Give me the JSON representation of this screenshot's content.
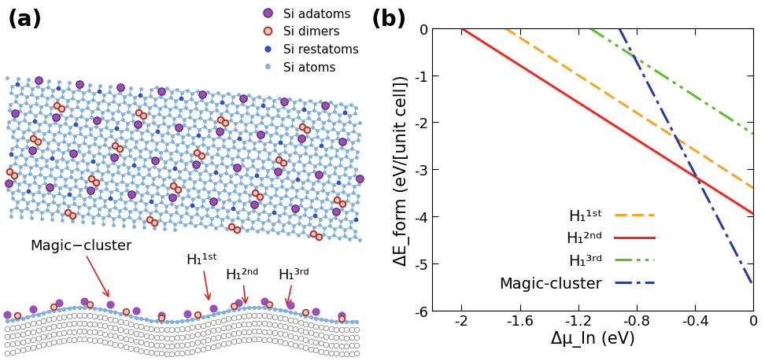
{
  "diagram": {
    "title": "(a)",
    "legend": "upper right",
    "legend_entries": [
      {
        "name": "Si adatoms",
        "color": "#9b4fb8"
      },
      {
        "name": "Si dimers",
        "color": "#b03a2e"
      },
      {
        "name": "Si restatoms",
        "color": "#3050c0"
      },
      {
        "name": "Si atoms",
        "color": "#7fb0e0"
      }
    ],
    "annotations": [
      "Magic−cluster",
      "H₁¹ˢᵗ",
      "H₁²ⁿᵈ",
      "H₁³ʳᵈ"
    ]
  },
  "chart_data": {
    "type": "line",
    "title": "(b)",
    "x_label": "Δμ_In (eV)",
    "y_label": "ΔE_form (eV/[unit cell])",
    "xlim": [
      -2.2,
      0
    ],
    "ylim": [
      -6,
      0
    ],
    "xticks": [
      -2,
      -1.6,
      -1.2,
      -0.8,
      -0.4,
      0
    ],
    "yticks": [
      0,
      -1,
      -2,
      -3,
      -4,
      -5,
      -6
    ],
    "legend": "lower center",
    "series": [
      {
        "name": "H₁¹ˢᵗ",
        "color": "#f5a623",
        "line_style": "dashed",
        "x": [
          -1.7,
          0
        ],
        "values": [
          0,
          -3.4
        ]
      },
      {
        "name": "H₁²ⁿᵈ",
        "color": "#ee2a24",
        "line_style": "solid",
        "x": [
          -2.0,
          0
        ],
        "values": [
          0,
          -3.95
        ]
      },
      {
        "name": "H₁³ʳᵈ",
        "color": "#5bbf2a",
        "line_style": "dashdotdot",
        "x": [
          -1.12,
          0
        ],
        "values": [
          0,
          -2.25
        ]
      },
      {
        "name": "Magic-cluster",
        "color": "#2b3d9c",
        "line_style": "dashdot",
        "x": [
          -0.92,
          0
        ],
        "values": [
          0,
          -5.5
        ]
      }
    ]
  }
}
